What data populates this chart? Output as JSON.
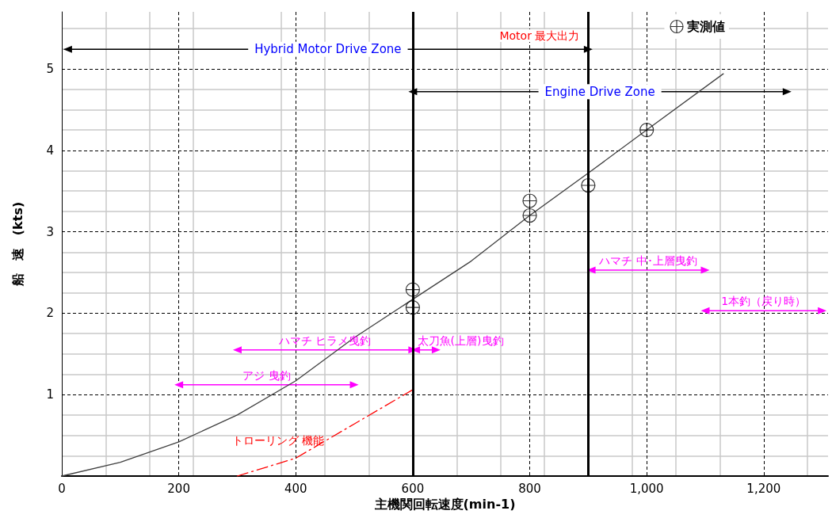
{
  "chart_data": {
    "type": "line",
    "xlabel": "主機関回転速度(min-1)",
    "ylabel": "船　速　(kts)",
    "xlim": [
      0,
      1310
    ],
    "ylim": [
      0,
      5.7
    ],
    "xticks": [
      0,
      200,
      400,
      600,
      800,
      {
        "value": 1000,
        "label": "1,000"
      },
      {
        "value": 1200,
        "label": "1,200"
      }
    ],
    "yticks": [
      1,
      2,
      3,
      4,
      5
    ],
    "grid": true,
    "legend": "top right",
    "series": [
      {
        "color": "#404040",
        "marker": "none",
        "line_style": "solid",
        "x": [
          0,
          100,
          200,
          300,
          400,
          500,
          600,
          700,
          800,
          900,
          1000,
          1131
        ],
        "values": [
          0,
          0.17,
          0.42,
          0.75,
          1.17,
          1.7,
          2.17,
          2.64,
          3.2,
          3.72,
          4.25,
          4.94
        ]
      },
      {
        "type": "line",
        "name": "トローリング 機能",
        "color": "#ff0000",
        "marker": "none",
        "line_style": "dashed",
        "x": [
          300,
          400,
          500,
          600
        ],
        "values": [
          0,
          0.22,
          0.64,
          1.06
        ]
      },
      {
        "type": "scatter",
        "name": "実測値",
        "color": "#000000",
        "marker": "cross",
        "x": [
          600,
          600,
          800,
          800,
          900,
          1000
        ],
        "values": [
          2.29,
          2.07,
          3.38,
          3.2,
          3.57,
          4.25
        ]
      },
      {
        "type": "line",
        "name": "Hybrid Motor Drive Zone",
        "color": "#000000",
        "marker": "triangle",
        "x": [
          10,
          900
        ],
        "values": [
          5.24,
          5.24
        ]
      },
      {
        "type": "line",
        "name": "Engine Drive Zone",
        "color": "#000000",
        "marker": "triangle",
        "x": [
          600,
          1240
        ],
        "values": [
          4.72,
          4.72
        ]
      },
      {
        "type": "line",
        "name": "アジ 曳釣",
        "color": "#ff00ff",
        "marker": "triangle",
        "x": [
          200,
          500
        ],
        "values": [
          1.12,
          1.12
        ]
      },
      {
        "type": "line",
        "name": "ハマチ ヒラメ曳釣",
        "color": "#ff00ff",
        "marker": "triangle",
        "x": [
          300,
          600
        ],
        "values": [
          1.55,
          1.55
        ]
      },
      {
        "type": "line",
        "name": "太刀魚(上層)曳釣",
        "color": "#ff00ff",
        "marker": "triangle",
        "x": [
          605,
          640
        ],
        "values": [
          1.55,
          1.55
        ]
      },
      {
        "type": "line",
        "name": "ハマチ 中･上層曳釣",
        "color": "#ff00ff",
        "marker": "triangle",
        "x": [
          905,
          1100
        ],
        "values": [
          2.53,
          2.53
        ]
      },
      {
        "type": "line",
        "name": "1本釣（戻り時）",
        "color": "#ff00ff",
        "marker": "triangle",
        "x": [
          1100,
          1300
        ],
        "values": [
          2.03,
          2.03
        ]
      }
    ],
    "ref_lines": [
      {
        "axis": "x",
        "value": 600,
        "color": "#000000"
      },
      {
        "axis": "x",
        "value": 900,
        "label": "Motor 最大出力",
        "color": "#000000"
      }
    ]
  }
}
